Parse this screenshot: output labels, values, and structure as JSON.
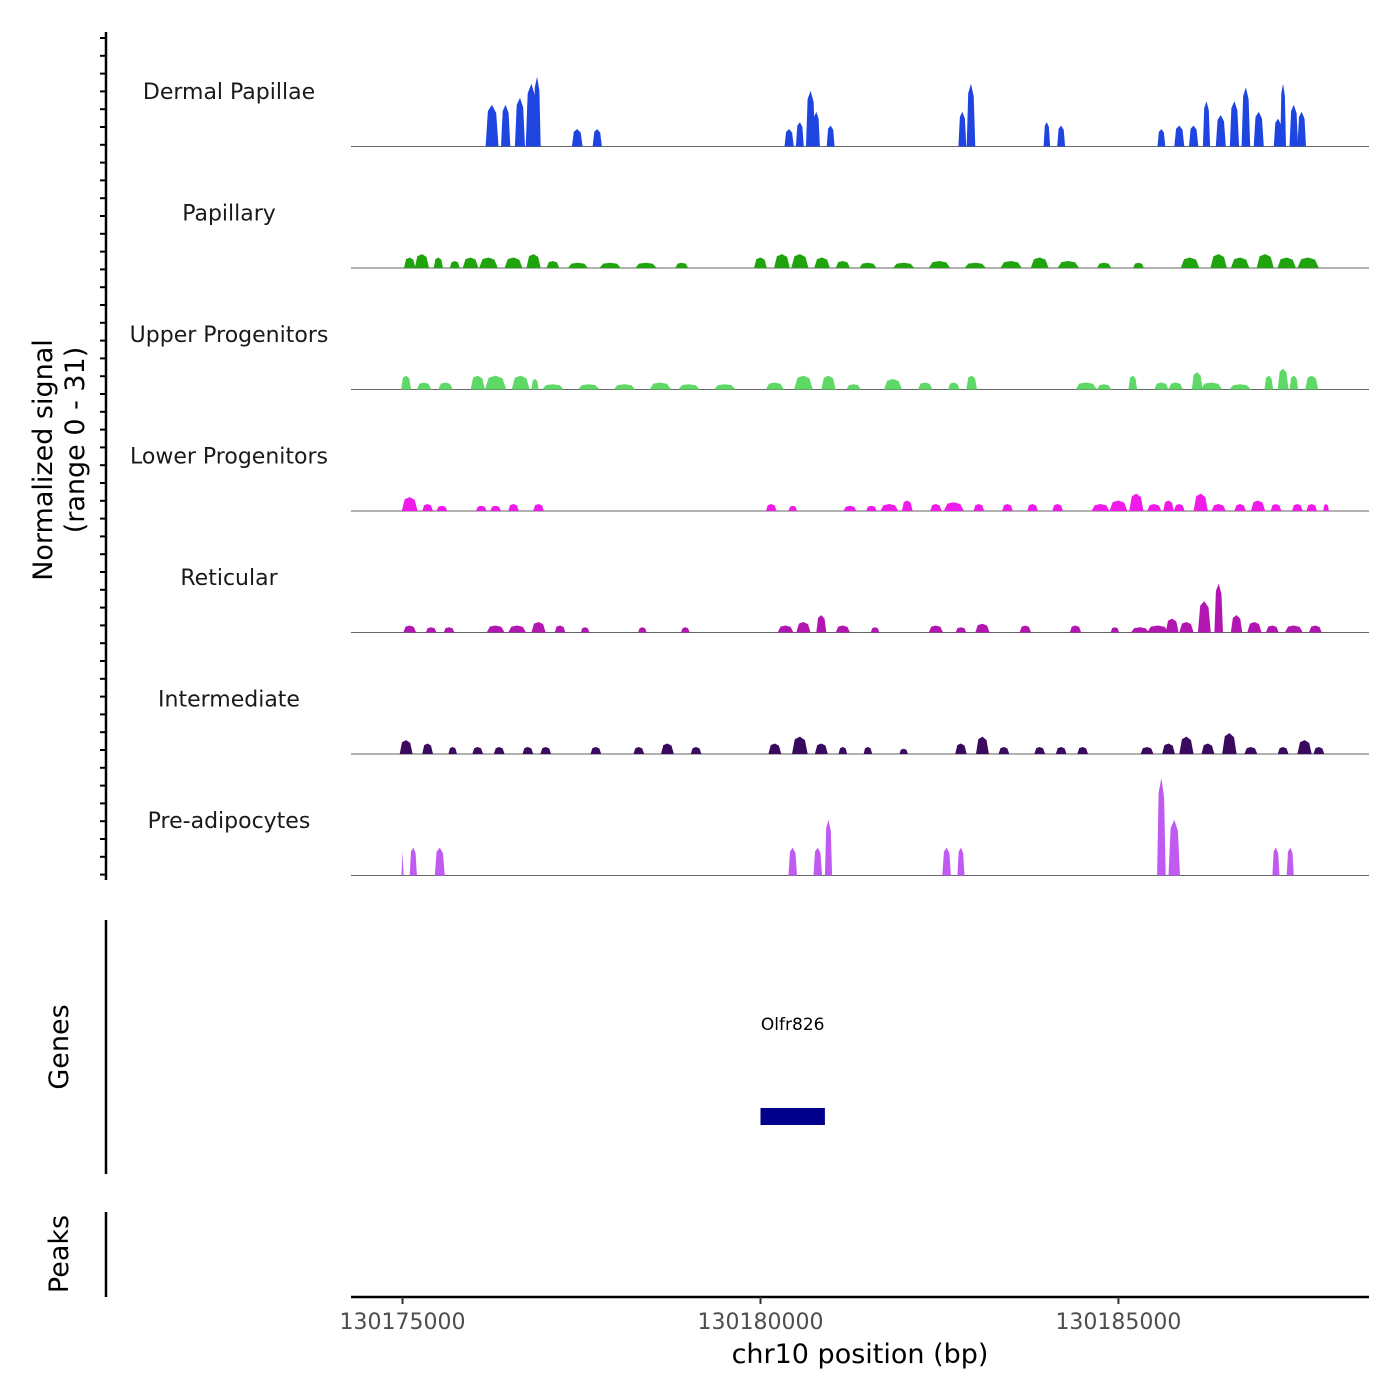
{
  "chart_data": {
    "type": "area",
    "title": "",
    "ylabel_line1": "Normalized signal",
    "ylabel_line2": "(range 0 - 31)",
    "ylim": [
      0,
      31
    ],
    "xlabel": "chr10 position (bp)",
    "xlim": [
      130174280,
      130188500
    ],
    "x_ticks": [
      130175000,
      130180000,
      130185000
    ],
    "x_tick_labels": [
      "130175000",
      "130180000",
      "130185000"
    ],
    "tracks": [
      {
        "name": "Dermal Papillae",
        "color": "#1f45e0",
        "peaks": [
          [
            130176250,
            12,
            180
          ],
          [
            130176440,
            12,
            130
          ],
          [
            130176640,
            14,
            140
          ],
          [
            130176800,
            18,
            160
          ],
          [
            130176880,
            20,
            100
          ],
          [
            130177440,
            5,
            150
          ],
          [
            130177720,
            5,
            130
          ],
          [
            130180400,
            5,
            130
          ],
          [
            130180550,
            7,
            110
          ],
          [
            130180700,
            16,
            130
          ],
          [
            130180780,
            10,
            100
          ],
          [
            130180980,
            6,
            110
          ],
          [
            130182820,
            10,
            110
          ],
          [
            130182940,
            18,
            120
          ],
          [
            130184000,
            7,
            90
          ],
          [
            130184200,
            6,
            110
          ],
          [
            130185600,
            5,
            110
          ],
          [
            130185850,
            6,
            140
          ],
          [
            130186050,
            6,
            130
          ],
          [
            130186230,
            13,
            100
          ],
          [
            130186430,
            9,
            140
          ],
          [
            130186620,
            13,
            130
          ],
          [
            130186780,
            17,
            120
          ],
          [
            130186960,
            10,
            140
          ],
          [
            130187230,
            8,
            120
          ],
          [
            130187300,
            18,
            80
          ],
          [
            130187450,
            12,
            120
          ],
          [
            130187560,
            10,
            120
          ]
        ]
      },
      {
        "name": "Papillary",
        "color": "#1fa40e",
        "peaks": [
          [
            130175100,
            3,
            160
          ],
          [
            130175270,
            4,
            200
          ],
          [
            130175500,
            3,
            130
          ],
          [
            130175730,
            2,
            140
          ],
          [
            130175950,
            3,
            220
          ],
          [
            130176200,
            3,
            260
          ],
          [
            130176550,
            3,
            250
          ],
          [
            130176830,
            4,
            200
          ],
          [
            130177100,
            2,
            180
          ],
          [
            130177450,
            1.5,
            280
          ],
          [
            130177900,
            1.5,
            300
          ],
          [
            130178400,
            1.5,
            300
          ],
          [
            130178900,
            1.5,
            180
          ],
          [
            130180000,
            3,
            180
          ],
          [
            130180300,
            4,
            220
          ],
          [
            130180550,
            4,
            240
          ],
          [
            130180860,
            3,
            220
          ],
          [
            130181150,
            2,
            200
          ],
          [
            130181500,
            1.5,
            240
          ],
          [
            130182000,
            1.5,
            300
          ],
          [
            130182500,
            2,
            300
          ],
          [
            130183000,
            1.5,
            300
          ],
          [
            130183500,
            2,
            300
          ],
          [
            130183900,
            3,
            250
          ],
          [
            130184300,
            2,
            300
          ],
          [
            130184800,
            1.5,
            200
          ],
          [
            130185280,
            1.5,
            150
          ],
          [
            130186000,
            3,
            260
          ],
          [
            130186400,
            4,
            230
          ],
          [
            130186700,
            3,
            260
          ],
          [
            130187050,
            4,
            240
          ],
          [
            130187350,
            3,
            260
          ],
          [
            130187650,
            3,
            300
          ]
        ]
      },
      {
        "name": "Upper Progenitors",
        "color": "#5ed965",
        "peaks": [
          [
            130175050,
            4,
            140
          ],
          [
            130175300,
            2,
            200
          ],
          [
            130175600,
            2,
            200
          ],
          [
            130176050,
            4,
            200
          ],
          [
            130176300,
            4,
            300
          ],
          [
            130176650,
            4,
            250
          ],
          [
            130176850,
            3,
            100
          ],
          [
            130177100,
            1.5,
            300
          ],
          [
            130177600,
            1.5,
            300
          ],
          [
            130178100,
            1.5,
            300
          ],
          [
            130178600,
            2,
            300
          ],
          [
            130179000,
            1.5,
            300
          ],
          [
            130179500,
            1.5,
            300
          ],
          [
            130180200,
            2,
            250
          ],
          [
            130180600,
            4,
            260
          ],
          [
            130180950,
            4,
            200
          ],
          [
            130181300,
            1.5,
            200
          ],
          [
            130181850,
            3,
            250
          ],
          [
            130182300,
            2,
            200
          ],
          [
            130182700,
            2,
            160
          ],
          [
            130182950,
            4,
            150
          ],
          [
            130184550,
            2,
            300
          ],
          [
            130184800,
            1.5,
            200
          ],
          [
            130185200,
            4,
            120
          ],
          [
            130185600,
            2,
            200
          ],
          [
            130185800,
            2,
            200
          ],
          [
            130186100,
            5,
            150
          ],
          [
            130186300,
            2,
            300
          ],
          [
            130186700,
            1.5,
            300
          ],
          [
            130187100,
            4,
            120
          ],
          [
            130187300,
            6,
            150
          ],
          [
            130187450,
            4,
            120
          ],
          [
            130187700,
            4,
            180
          ]
        ]
      },
      {
        "name": "Lower Progenitors",
        "color": "#f01ae9",
        "peaks": [
          [
            130175100,
            4,
            220
          ],
          [
            130175350,
            2,
            150
          ],
          [
            130175550,
            1.5,
            150
          ],
          [
            130176100,
            1.5,
            150
          ],
          [
            130176300,
            1.5,
            150
          ],
          [
            130176550,
            2,
            150
          ],
          [
            130176900,
            2,
            150
          ],
          [
            130180150,
            2,
            150
          ],
          [
            130180450,
            1.5,
            120
          ],
          [
            130181250,
            1.5,
            180
          ],
          [
            130181550,
            1.5,
            150
          ],
          [
            130181800,
            2,
            250
          ],
          [
            130182050,
            3,
            150
          ],
          [
            130182450,
            2,
            160
          ],
          [
            130182700,
            2.5,
            280
          ],
          [
            130183050,
            2,
            150
          ],
          [
            130183450,
            2,
            150
          ],
          [
            130183800,
            2,
            150
          ],
          [
            130184150,
            2,
            150
          ],
          [
            130184750,
            2,
            250
          ],
          [
            130185000,
            3,
            250
          ],
          [
            130185250,
            5,
            200
          ],
          [
            130185500,
            2,
            200
          ],
          [
            130185700,
            3,
            150
          ],
          [
            130185850,
            2,
            150
          ],
          [
            130186150,
            5,
            200
          ],
          [
            130186400,
            2,
            200
          ],
          [
            130186700,
            2,
            160
          ],
          [
            130186950,
            3,
            200
          ],
          [
            130187200,
            2,
            150
          ],
          [
            130187500,
            2,
            150
          ],
          [
            130187700,
            2,
            150
          ],
          [
            130187900,
            2,
            80
          ]
        ]
      },
      {
        "name": "Reticular",
        "color": "#b216b0",
        "peaks": [
          [
            130175100,
            2,
            180
          ],
          [
            130175400,
            1.5,
            150
          ],
          [
            130175650,
            1.5,
            150
          ],
          [
            130176300,
            2,
            250
          ],
          [
            130176600,
            2,
            250
          ],
          [
            130176900,
            3,
            200
          ],
          [
            130177200,
            2,
            150
          ],
          [
            130177550,
            1.5,
            120
          ],
          [
            130178350,
            1.5,
            120
          ],
          [
            130178950,
            1.5,
            120
          ],
          [
            130180350,
            2,
            220
          ],
          [
            130180600,
            3,
            200
          ],
          [
            130180850,
            5,
            140
          ],
          [
            130181150,
            2,
            200
          ],
          [
            130181600,
            1.5,
            120
          ],
          [
            130182450,
            2,
            200
          ],
          [
            130182800,
            1.5,
            150
          ],
          [
            130183100,
            2.5,
            200
          ],
          [
            130183700,
            2,
            160
          ],
          [
            130184400,
            2,
            160
          ],
          [
            130184950,
            1.5,
            120
          ],
          [
            130185300,
            1.5,
            250
          ],
          [
            130185550,
            2,
            300
          ],
          [
            130185750,
            4,
            180
          ],
          [
            130185950,
            3,
            200
          ],
          [
            130186200,
            9,
            180
          ],
          [
            130186400,
            14,
            120
          ],
          [
            130186650,
            5,
            160
          ],
          [
            130186900,
            3,
            200
          ],
          [
            130187150,
            2,
            180
          ],
          [
            130187450,
            2,
            250
          ],
          [
            130187750,
            2,
            180
          ]
        ]
      },
      {
        "name": "Intermediate",
        "color": "#3a0a5e",
        "peaks": [
          [
            130175050,
            4,
            180
          ],
          [
            130175350,
            3,
            150
          ],
          [
            130175700,
            2,
            120
          ],
          [
            130176050,
            2,
            150
          ],
          [
            130176350,
            2,
            150
          ],
          [
            130176750,
            2,
            150
          ],
          [
            130177000,
            2,
            150
          ],
          [
            130177700,
            2,
            150
          ],
          [
            130178300,
            2,
            150
          ],
          [
            130178700,
            3,
            180
          ],
          [
            130179100,
            2,
            150
          ],
          [
            130180200,
            3,
            180
          ],
          [
            130180550,
            5,
            220
          ],
          [
            130180850,
            3,
            180
          ],
          [
            130181150,
            2,
            120
          ],
          [
            130181500,
            2,
            120
          ],
          [
            130182000,
            1.5,
            120
          ],
          [
            130182800,
            3,
            160
          ],
          [
            130183100,
            5,
            180
          ],
          [
            130183400,
            2,
            150
          ],
          [
            130183900,
            2,
            150
          ],
          [
            130184200,
            2,
            150
          ],
          [
            130184500,
            2,
            150
          ],
          [
            130185400,
            2,
            180
          ],
          [
            130185700,
            3,
            180
          ],
          [
            130185950,
            5,
            200
          ],
          [
            130186250,
            3,
            180
          ],
          [
            130186550,
            6,
            200
          ],
          [
            130186850,
            2,
            180
          ],
          [
            130187300,
            2,
            150
          ],
          [
            130187600,
            4,
            200
          ],
          [
            130187800,
            2,
            150
          ]
        ]
      },
      {
        "name": "Pre-adipocytes",
        "color": "#c05af0",
        "peaks": [
          [
            130175000,
            8,
            30
          ],
          [
            130175150,
            8,
            100
          ],
          [
            130175520,
            8,
            140
          ],
          [
            130180450,
            8,
            120
          ],
          [
            130180800,
            8,
            120
          ],
          [
            130180950,
            16,
            100
          ],
          [
            130182600,
            8,
            120
          ],
          [
            130182800,
            8,
            100
          ],
          [
            130185600,
            28,
            120
          ],
          [
            130185780,
            16,
            160
          ],
          [
            130187200,
            8,
            100
          ],
          [
            130187400,
            8,
            100
          ]
        ]
      }
    ],
    "genes_panel": {
      "title": "Genes",
      "genes": [
        {
          "name": "Olfr826",
          "start": 130180000,
          "end": 130180900,
          "color": "#00008b"
        }
      ]
    },
    "peaks_panel": {
      "title": "Peaks"
    }
  }
}
